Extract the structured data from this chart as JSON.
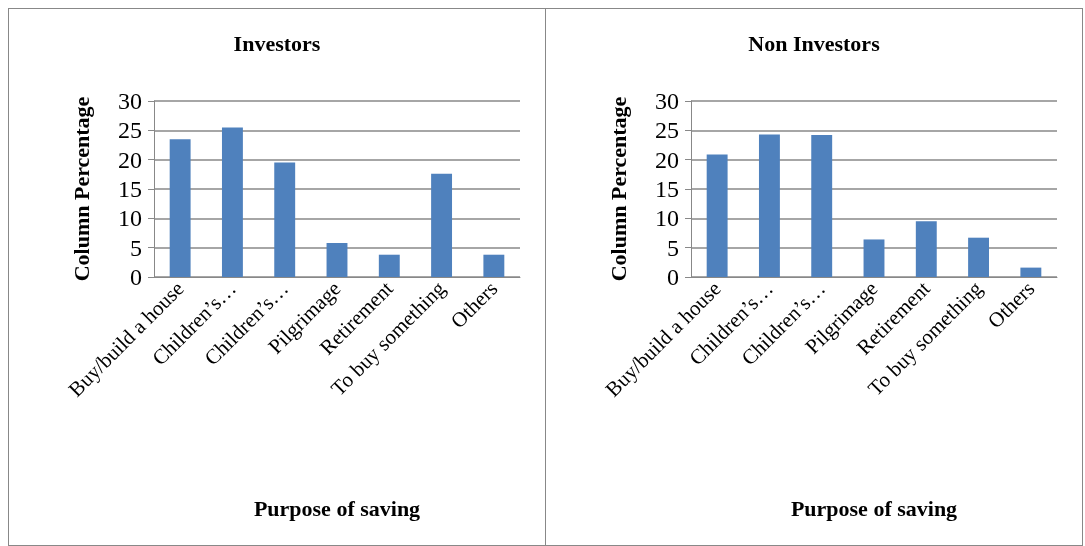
{
  "chart_data": [
    {
      "type": "bar",
      "title": "Investors",
      "xlabel": "Purpose of saving",
      "ylabel": "Column Percentage",
      "categories": [
        "Buy/build a house",
        "Children’s…",
        "Children’s…",
        "Pilgrimage",
        "Retirement",
        "To buy something",
        "Others"
      ],
      "values": [
        23.5,
        25.5,
        19.5,
        5.8,
        3.8,
        17.6,
        3.8
      ],
      "color": "#4f81bd",
      "ylim": [
        0,
        30
      ],
      "yticks": [
        0,
        5,
        10,
        15,
        20,
        25,
        30
      ],
      "grid": "y"
    },
    {
      "type": "bar",
      "title": "Non Investors",
      "xlabel": "Purpose of saving",
      "ylabel": "Column Percentage",
      "categories": [
        "Buy/build a house",
        "Children’s…",
        "Children’s…",
        "Pilgrimage",
        "Retirement",
        "To buy something",
        "Others"
      ],
      "values": [
        20.9,
        24.3,
        24.2,
        6.4,
        9.5,
        6.7,
        1.6
      ],
      "color": "#4f81bd",
      "ylim": [
        0,
        30
      ],
      "yticks": [
        0,
        5,
        10,
        15,
        20,
        25,
        30
      ],
      "grid": "y"
    }
  ]
}
